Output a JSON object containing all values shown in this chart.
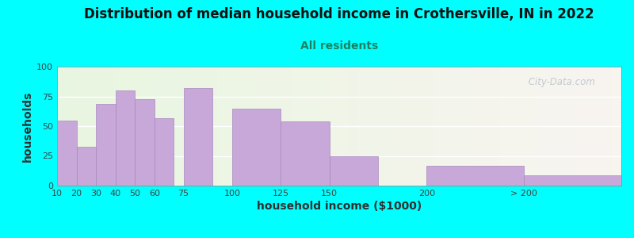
{
  "title": "Distribution of median household income in Crothersville, IN in 2022",
  "subtitle": "All residents",
  "xlabel": "household income ($1000)",
  "ylabel": "households",
  "background_outer": "#00FFFF",
  "bar_color": "#c8a8d8",
  "bar_edge_color": "#a888c0",
  "values": [
    55,
    33,
    69,
    80,
    73,
    57,
    82,
    65,
    54,
    25,
    17,
    9
  ],
  "bar_lefts": [
    10,
    20,
    30,
    40,
    50,
    60,
    75,
    100,
    125,
    150,
    200,
    250
  ],
  "bar_widths": [
    10,
    10,
    10,
    10,
    10,
    10,
    15,
    25,
    25,
    25,
    50,
    50
  ],
  "xlim": [
    10,
    300
  ],
  "ylim": [
    0,
    100
  ],
  "yticks": [
    0,
    25,
    50,
    75,
    100
  ],
  "xtick_positions": [
    10,
    20,
    30,
    40,
    50,
    60,
    75,
    100,
    125,
    150,
    200,
    250
  ],
  "xtick_labels": [
    "10",
    "20",
    "30",
    "40",
    "50",
    "60",
    "75",
    "100",
    "125",
    "150",
    "200",
    "> 200"
  ],
  "watermark": " City-Data.com",
  "title_fontsize": 12,
  "subtitle_fontsize": 10,
  "axis_label_fontsize": 10,
  "tick_fontsize": 8,
  "subtitle_color": "#208060",
  "title_color": "#101010",
  "axis_label_color": "#303030",
  "tick_color": "#404040"
}
